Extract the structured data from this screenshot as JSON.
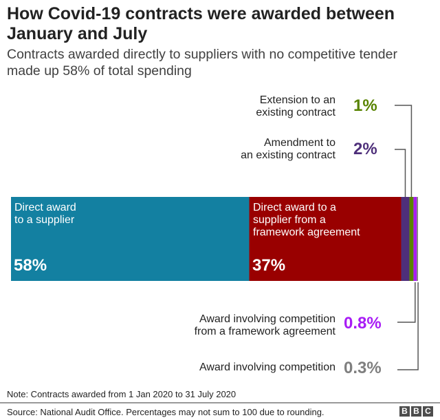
{
  "chart_data": {
    "type": "bar",
    "orientation": "horizontal-stacked",
    "title": "How Covid-19 contracts were awarded between January and July",
    "subtitle": "Contracts awarded directly to suppliers with no competitive tender made up 58% of total spending",
    "unit": "%",
    "series": [
      {
        "name": "Direct award to a supplier",
        "value": 58,
        "label": "58%",
        "color": "#1380A1"
      },
      {
        "name": "Direct award to a supplier from a framework agreement",
        "value": 37,
        "label": "37%",
        "color": "#990000"
      },
      {
        "name": "Amendment to an existing contract",
        "value": 2,
        "label": "2%",
        "color": "#4E2F7A"
      },
      {
        "name": "Extension to an existing contract",
        "value": 1,
        "label": "1%",
        "color": "#588300"
      },
      {
        "name": "Award involving competition from a framework agreement",
        "value": 0.8,
        "label": "0.8%",
        "color": "#A81CF5"
      },
      {
        "name": "Award involving competition",
        "value": 0.3,
        "label": "0.3%",
        "color": "#7F7F7F"
      }
    ]
  },
  "labels": {
    "s0": "Direct award\nto a supplier",
    "s1": "Direct award to a\nsupplier from a\nframework agreement",
    "s2": "Amendment to\nan existing contract",
    "s3": "Extension to an\nexisting contract",
    "s4": "Award involving competition\nfrom a framework agreement",
    "s5": "Award involving competition"
  },
  "footer": {
    "note": "Note: Contracts awarded from 1 Jan 2020 to 31 July 2020",
    "source": "Source: National Audit Office. Percentages may not sum to 100 due to rounding.",
    "logo": [
      "B",
      "B",
      "C"
    ]
  }
}
